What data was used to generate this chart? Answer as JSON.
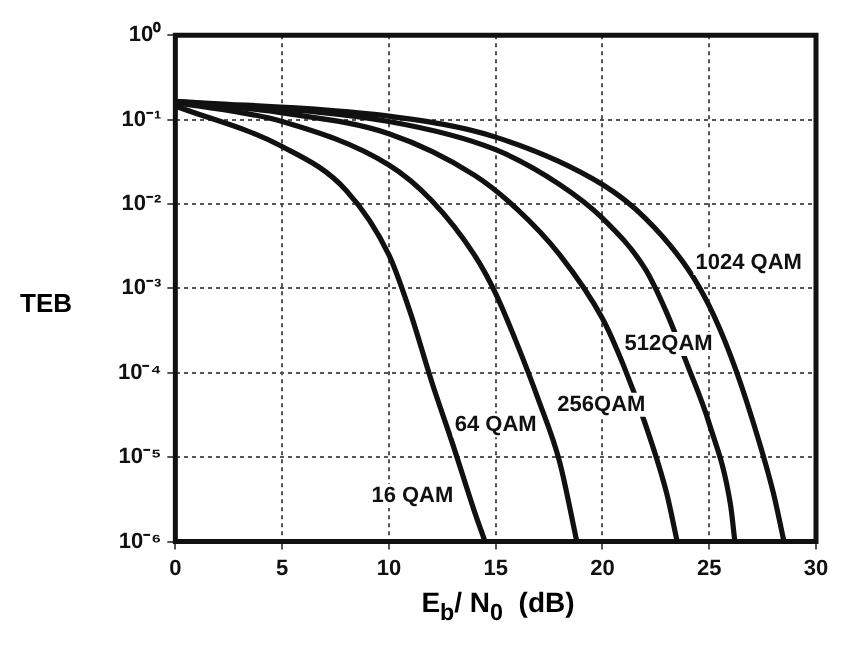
{
  "chart_data": {
    "type": "line",
    "xlabel": "E$_{b}$/ N$_{0}$  (dB)",
    "ylabel": "TEB",
    "log": "y",
    "grid": true,
    "marker": "none",
    "line_style": "solid",
    "legend": false,
    "xlim": [
      0,
      30
    ],
    "xticks": [
      0,
      5,
      10,
      15,
      20,
      25,
      30
    ],
    "ylim": [
      1e-06,
      1
    ],
    "yticks": [
      {
        "value": 1e-06,
        "label": "10⁻⁶"
      },
      {
        "value": 1e-05,
        "label": "10⁻⁵"
      },
      {
        "value": 0.0001,
        "label": "10⁻⁴"
      },
      {
        "value": 0.001,
        "label": "10⁻³"
      },
      {
        "value": 0.01,
        "label": "10⁻²"
      },
      {
        "value": 0.1,
        "label": "10⁻¹"
      },
      {
        "value": 1,
        "label": "10⁰"
      }
    ],
    "series": [
      {
        "name": "16 QAM",
        "color": "#111111",
        "x": [
          0,
          5,
          8,
          10,
          11,
          12,
          13,
          14,
          14.5
        ],
        "values": [
          0.145,
          0.048,
          0.0145,
          0.0025,
          0.00052,
          7.9e-05,
          1.4e-05,
          2.3e-06,
          1e-06
        ]
      },
      {
        "name": "64 QAM",
        "color": "#111111",
        "x": [
          0,
          5,
          10,
          12,
          14,
          15,
          16,
          17,
          18,
          18.8
        ],
        "values": [
          0.16,
          0.095,
          0.029,
          0.011,
          0.0025,
          0.00087,
          0.00022,
          4.8e-05,
          8.7e-06,
          1e-06
        ]
      },
      {
        "name": "256QAM",
        "color": "#111111",
        "x": [
          0,
          5,
          10,
          14,
          16,
          18,
          20,
          21,
          22,
          23,
          23.5
        ],
        "values": [
          0.165,
          0.12,
          0.068,
          0.022,
          0.0087,
          0.0025,
          0.00044,
          0.00012,
          2.5e-05,
          3.8e-06,
          1e-06
        ]
      },
      {
        "name": "512QAM",
        "color": "#111111",
        "x": [
          0,
          10,
          15,
          18,
          20,
          22,
          23,
          24,
          25,
          26,
          26.2
        ],
        "values": [
          0.165,
          0.095,
          0.044,
          0.017,
          0.0068,
          0.0017,
          0.00052,
          0.00012,
          2.5e-05,
          2.7e-06,
          1e-06
        ]
      },
      {
        "name": "1024 QAM",
        "color": "#111111",
        "x": [
          0,
          10,
          15,
          20,
          22,
          24,
          25,
          26,
          27,
          28,
          28.5
        ],
        "values": [
          0.165,
          0.11,
          0.062,
          0.017,
          0.0068,
          0.0017,
          0.00062,
          0.00016,
          2.9e-05,
          3.8e-06,
          1e-06
        ]
      }
    ]
  }
}
